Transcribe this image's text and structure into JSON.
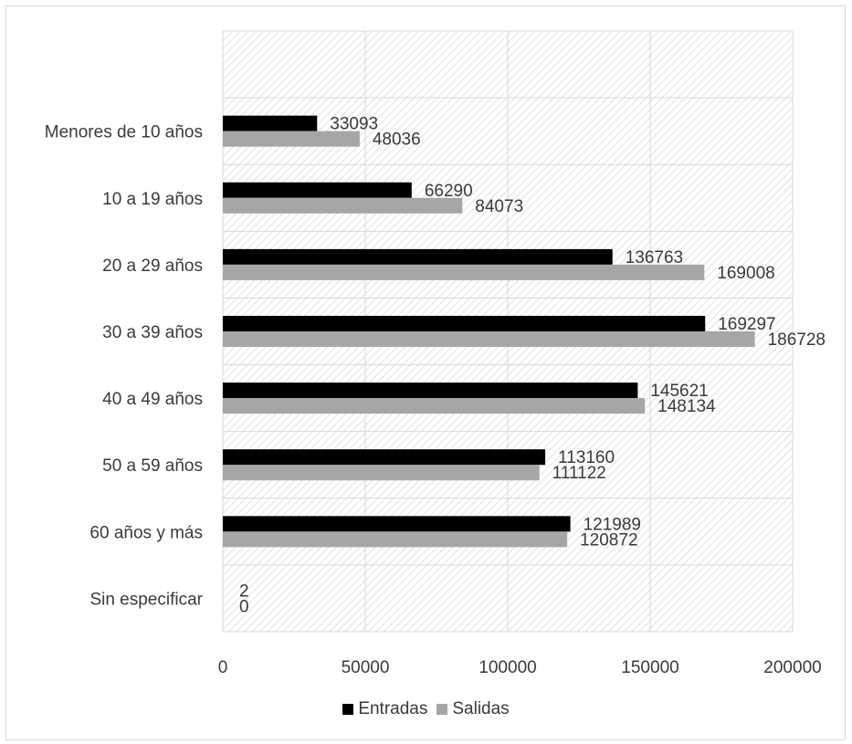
{
  "chart_data": {
    "type": "bar",
    "orientation": "horizontal",
    "categories": [
      "Menores de 10 años",
      "10 a 19 años",
      "20 a 29 años",
      "30 a 39 años",
      "40 a 49 años",
      "50 a 59 años",
      "60 años y más",
      "Sin especificar"
    ],
    "series": [
      {
        "name": "Entradas",
        "color": "#000000",
        "values": [
          33093,
          66290,
          136763,
          169297,
          145621,
          113160,
          121989,
          2
        ]
      },
      {
        "name": "Salidas",
        "color": "#a6a6a6",
        "values": [
          48036,
          84073,
          169008,
          186728,
          148134,
          111122,
          120872,
          0
        ]
      }
    ],
    "xlim": [
      0,
      200000
    ],
    "xticks": [
      "0",
      "50000",
      "100000",
      "150000",
      "200000"
    ],
    "data_labels": true,
    "grid": true,
    "plot_background": "diagonal-hatch",
    "legend": "bottom"
  }
}
